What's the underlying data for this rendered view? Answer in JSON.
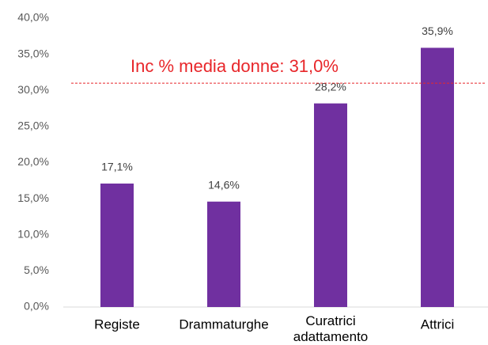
{
  "chart_data": {
    "type": "bar",
    "categories": [
      "Registe",
      "Drammaturghe",
      "Curatrici adattamento",
      "Attrici"
    ],
    "values": [
      17.1,
      14.6,
      28.2,
      35.9
    ],
    "value_labels": [
      "17,1%",
      "14,6%",
      "28,2%",
      "35,9%"
    ],
    "color": "#7030a0",
    "ylim": [
      0,
      40
    ],
    "yticks": [
      {
        "value": 0,
        "label": "0,0%"
      },
      {
        "value": 5,
        "label": "5,0%"
      },
      {
        "value": 10,
        "label": "10,0%"
      },
      {
        "value": 15,
        "label": "15,0%"
      },
      {
        "value": 20,
        "label": "20,0%"
      },
      {
        "value": 25,
        "label": "25,0%"
      },
      {
        "value": 30,
        "label": "30,0%"
      },
      {
        "value": 35,
        "label": "35,0%"
      },
      {
        "value": 40,
        "label": "40,0%"
      }
    ],
    "grid": false,
    "reference_line": {
      "value": 31.0,
      "label": "Inc % media donne: 31,0%",
      "color": "#e8262a"
    }
  }
}
